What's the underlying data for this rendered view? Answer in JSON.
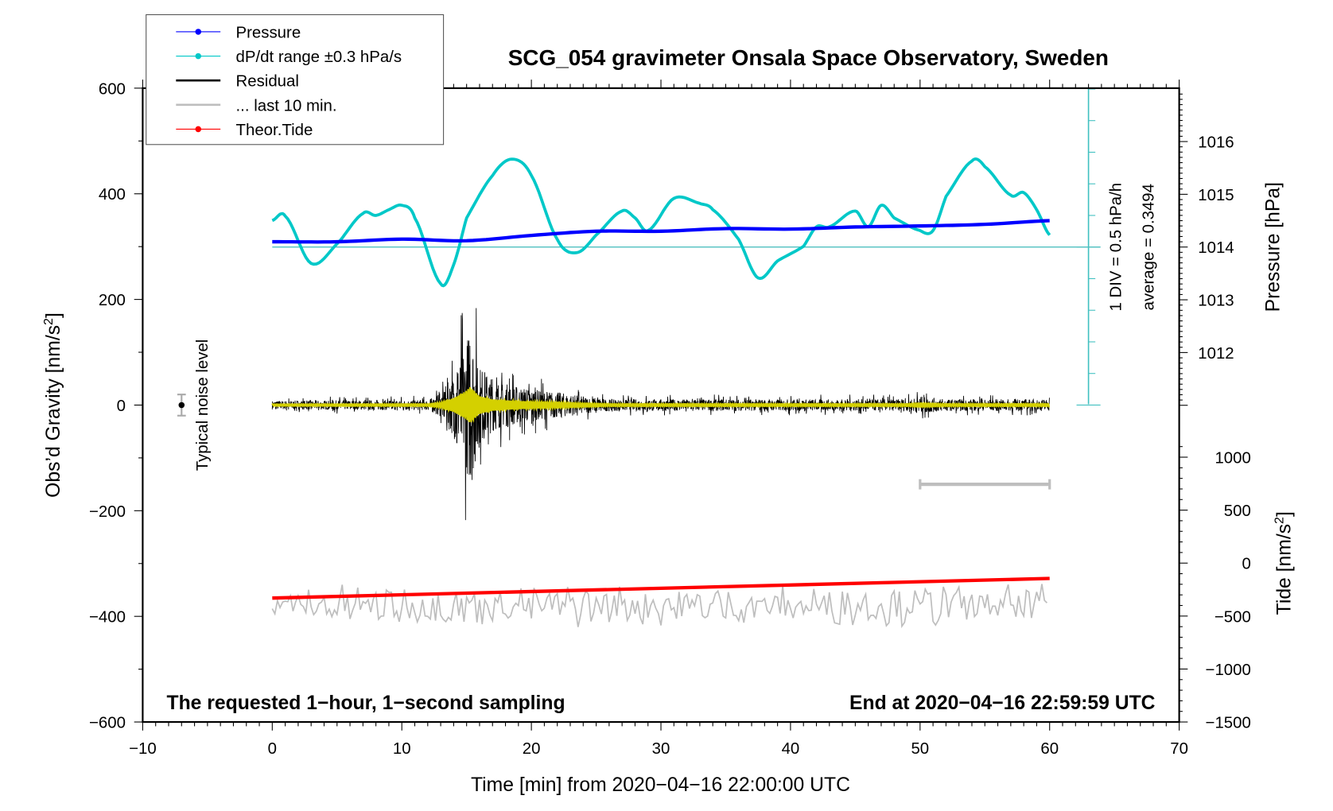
{
  "chart_data": {
    "type": "line",
    "title": "SCG_054 gravimeter Onsala Space Observatory, Sweden",
    "xlabel": "Time [min] from 2020−04−16 22:00:00 UTC",
    "ylabel_left": "Obs’d Gravity [nm/s",
    "ylabel_left_sup": "2",
    "ylabel_left_close": "]",
    "ylabel_pressure": "Pressure [hPa]",
    "ylabel_tide": "Tide [nm/s",
    "ylabel_tide_sup": "2",
    "ylabel_tide_close": "]",
    "xlim": [
      -10,
      70
    ],
    "ylim_left": [
      -600,
      600
    ],
    "ylim_pressure_ticks": [
      1012,
      1016
    ],
    "ylim_tide": [
      -1500,
      1000
    ],
    "x_ticks": [
      "−10",
      "0",
      "10",
      "20",
      "30",
      "40",
      "50",
      "60",
      "70"
    ],
    "y_left_ticks": [
      "600",
      "400",
      "200",
      "0",
      "−200",
      "−400",
      "−600"
    ],
    "pressure_ticks": [
      "1016",
      "1015",
      "1014",
      "1013",
      "1012"
    ],
    "tide_ticks": [
      "1000",
      "500",
      "0",
      "−500",
      "−1000",
      "−1500"
    ],
    "grid": false,
    "legend_placement": "top-left",
    "legend": [
      {
        "label": "Pressure",
        "color": "#0000ff",
        "marker": true
      },
      {
        "label": "dP/dt range ±0.3 hPa/s",
        "color": "#00c8c8",
        "marker": true
      },
      {
        "label": "Residual",
        "color": "#000000",
        "marker": false
      },
      {
        "label": "... last 10 min.",
        "color": "#bebebe",
        "marker": false
      },
      {
        "label": "Theor.Tide",
        "color": "#ff0000",
        "marker": true
      }
    ],
    "dpdt_scale_label": "1 DIV = 0.5 hPa/h",
    "dpdt_average_label": "average = 0.3494",
    "dpdt_average": 0.3494,
    "dpdt_div": 0.5,
    "noise_label": "Typical noise level",
    "noise_level": 20,
    "footer_left": "The requested 1−hour, 1−second sampling",
    "footer_right": "End at 2020−04−16 22:59:59 UTC",
    "series": {
      "pressure_hPa": {
        "x": [
          0,
          5,
          10,
          15,
          20,
          25,
          30,
          35,
          40,
          45,
          50,
          55,
          60
        ],
        "y": [
          1014.1,
          1014.1,
          1014.15,
          1014.12,
          1014.22,
          1014.3,
          1014.3,
          1014.35,
          1014.34,
          1014.38,
          1014.4,
          1014.43,
          1014.5
        ]
      },
      "dpdt_hPa_per_h": {
        "x": [
          0,
          1,
          3,
          5,
          7,
          8,
          9,
          10,
          11,
          13,
          14,
          15,
          17,
          18.5,
          20,
          22,
          23.5,
          25,
          27,
          28,
          29,
          31,
          33,
          34,
          36,
          37.5,
          39,
          41,
          42,
          43,
          45,
          46,
          47,
          48,
          50,
          51,
          52,
          54,
          55,
          57,
          58,
          59,
          60
        ],
        "y": [
          0.77,
          0.84,
          0.09,
          0.4,
          0.88,
          0.85,
          0.94,
          1.01,
          0.81,
          -0.23,
          0.07,
          0.81,
          1.48,
          1.74,
          1.48,
          0.47,
          0.26,
          0.54,
          0.92,
          0.81,
          0.61,
          1.12,
          1.04,
          0.94,
          0.47,
          -0.14,
          0.13,
          0.36,
          0.67,
          0.67,
          0.92,
          0.67,
          1.01,
          0.81,
          0.61,
          0.61,
          1.15,
          1.71,
          1.62,
          1.17,
          1.21,
          0.94,
          0.54
        ]
      },
      "residual_envelope_nm_s2": {
        "x": [
          0,
          12,
          13,
          14,
          15,
          15.3,
          16,
          17,
          18,
          20,
          22,
          24,
          26,
          49,
          50,
          51,
          52,
          60
        ],
        "y": [
          15,
          18,
          40,
          110,
          230,
          290,
          140,
          90,
          75,
          55,
          45,
          30,
          20,
          20,
          30,
          25,
          20,
          20
        ]
      },
      "last10_level_nm_s2": -380,
      "last10_bar_x": [
        50,
        60
      ],
      "last10_bar_y": -150,
      "tide_nm_s2": {
        "x": [
          0,
          60
        ],
        "y": [
          -330,
          -145
        ]
      }
    }
  }
}
